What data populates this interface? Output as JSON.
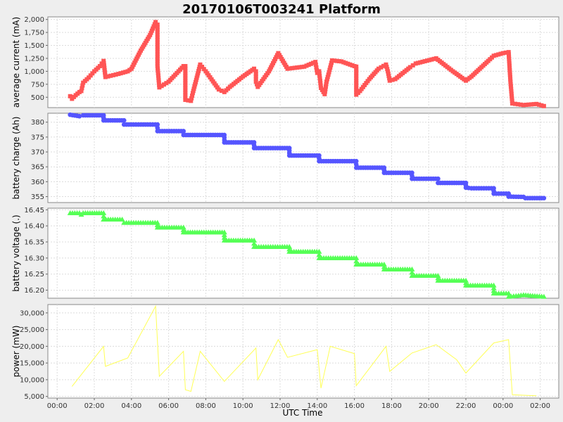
{
  "chart_data": {
    "title": "20170106T003241 Platform",
    "xlabel": "UTC Time",
    "x_ticks": [
      "00:00",
      "02:00",
      "04:00",
      "06:00",
      "08:00",
      "10:00",
      "12:00",
      "14:00",
      "16:00",
      "18:00",
      "20:00",
      "22:00",
      "00:00",
      "02:00"
    ],
    "x_tick_hours": [
      0,
      2,
      4,
      6,
      8,
      10,
      12,
      14,
      16,
      18,
      20,
      22,
      24,
      26
    ],
    "xlim": [
      -0.5,
      27.0
    ],
    "panels": [
      {
        "type": "line",
        "ylabel": "average current (mA)",
        "ylim": [
          300,
          2050
        ],
        "y_ticks": [
          500,
          750,
          1000,
          1250,
          1500,
          1750,
          2000
        ],
        "y_tick_labels": [
          "500",
          "750",
          "1,000",
          "1,250",
          "1,500",
          "1,750",
          "2,000"
        ],
        "color": "#ff5555",
        "marker": "square",
        "points": [
          [
            0.7,
            520
          ],
          [
            0.8,
            470
          ],
          [
            1.0,
            540
          ],
          [
            1.2,
            600
          ],
          [
            1.3,
            620
          ],
          [
            1.4,
            780
          ],
          [
            1.7,
            880
          ],
          [
            2.0,
            1000
          ],
          [
            2.3,
            1100
          ],
          [
            2.5,
            1200
          ],
          [
            2.6,
            890
          ],
          [
            3.3,
            950
          ],
          [
            3.8,
            1000
          ],
          [
            4.0,
            1050
          ],
          [
            4.5,
            1400
          ],
          [
            5.0,
            1700
          ],
          [
            5.3,
            1950
          ],
          [
            5.4,
            1900
          ],
          [
            5.4,
            1560
          ],
          [
            5.4,
            1100
          ],
          [
            5.5,
            690
          ],
          [
            6.0,
            800
          ],
          [
            6.8,
            1100
          ],
          [
            6.9,
            1100
          ],
          [
            6.9,
            450
          ],
          [
            7.2,
            430
          ],
          [
            7.3,
            580
          ],
          [
            7.7,
            1130
          ],
          [
            8.0,
            1000
          ],
          [
            8.7,
            650
          ],
          [
            9.0,
            600
          ],
          [
            9.3,
            700
          ],
          [
            10.0,
            900
          ],
          [
            10.6,
            1050
          ],
          [
            10.7,
            1000
          ],
          [
            10.7,
            800
          ],
          [
            10.8,
            700
          ],
          [
            11.4,
            1000
          ],
          [
            11.9,
            1350
          ],
          [
            12.4,
            1050
          ],
          [
            13.3,
            1090
          ],
          [
            13.9,
            1180
          ],
          [
            14.0,
            970
          ],
          [
            14.1,
            1000
          ],
          [
            14.2,
            680
          ],
          [
            14.4,
            560
          ],
          [
            14.5,
            800
          ],
          [
            14.8,
            1210
          ],
          [
            15.3,
            1190
          ],
          [
            16.0,
            1100
          ],
          [
            16.1,
            1090
          ],
          [
            16.1,
            550
          ],
          [
            16.3,
            620
          ],
          [
            16.8,
            850
          ],
          [
            17.3,
            1050
          ],
          [
            17.7,
            1130
          ],
          [
            17.8,
            1000
          ],
          [
            17.9,
            820
          ],
          [
            18.2,
            850
          ],
          [
            19.0,
            1080
          ],
          [
            19.3,
            1150
          ],
          [
            20.4,
            1250
          ],
          [
            21.3,
            1000
          ],
          [
            21.5,
            950
          ],
          [
            22.0,
            820
          ],
          [
            22.3,
            900
          ],
          [
            23.2,
            1200
          ],
          [
            23.5,
            1300
          ],
          [
            24.0,
            1350
          ],
          [
            24.3,
            1370
          ],
          [
            24.4,
            800
          ],
          [
            24.5,
            380
          ],
          [
            25.1,
            350
          ],
          [
            25.8,
            370
          ],
          [
            26.2,
            330
          ]
        ]
      },
      {
        "type": "line",
        "ylabel": "battery charge (Ah)",
        "ylim": [
          353,
          383
        ],
        "y_ticks": [
          355,
          360,
          365,
          370,
          375,
          380
        ],
        "y_tick_labels": [
          "355",
          "360",
          "365",
          "370",
          "375",
          "380"
        ],
        "color": "#5555ff",
        "marker": "circle",
        "points": [
          [
            0.7,
            382.5
          ],
          [
            1.2,
            382.0
          ],
          [
            1.4,
            382.3
          ],
          [
            2.5,
            382.3
          ],
          [
            2.5,
            380.6
          ],
          [
            3.6,
            380.6
          ],
          [
            3.6,
            379.2
          ],
          [
            5.4,
            379.2
          ],
          [
            5.4,
            377.0
          ],
          [
            6.8,
            377.0
          ],
          [
            6.8,
            375.7
          ],
          [
            9.0,
            375.7
          ],
          [
            9.0,
            373.2
          ],
          [
            10.6,
            373.2
          ],
          [
            10.6,
            371.3
          ],
          [
            12.5,
            371.3
          ],
          [
            12.5,
            368.8
          ],
          [
            14.1,
            368.8
          ],
          [
            14.1,
            366.9
          ],
          [
            16.1,
            366.9
          ],
          [
            16.1,
            364.7
          ],
          [
            17.6,
            364.7
          ],
          [
            17.6,
            363.0
          ],
          [
            19.1,
            363.0
          ],
          [
            19.1,
            361.0
          ],
          [
            20.5,
            361.0
          ],
          [
            20.5,
            359.6
          ],
          [
            22.0,
            359.6
          ],
          [
            22.0,
            358.0
          ],
          [
            22.3,
            357.8
          ],
          [
            23.5,
            357.8
          ],
          [
            23.5,
            356.0
          ],
          [
            24.3,
            356.0
          ],
          [
            24.3,
            355.0
          ],
          [
            25.1,
            354.9
          ],
          [
            25.2,
            354.5
          ],
          [
            26.2,
            354.5
          ]
        ]
      },
      {
        "type": "line",
        "ylabel": "battery voltage (.)",
        "ylim": [
          16.175,
          16.455
        ],
        "y_ticks": [
          16.2,
          16.25,
          16.3,
          16.35,
          16.4,
          16.45
        ],
        "y_tick_labels": [
          "16.20",
          "16.25",
          "16.30",
          "16.35",
          "16.40",
          "16.45"
        ],
        "color": "#55ff55",
        "marker": "triangle",
        "points": [
          [
            0.7,
            16.44
          ],
          [
            1.2,
            16.44
          ],
          [
            1.3,
            16.435
          ],
          [
            1.4,
            16.44
          ],
          [
            2.5,
            16.44
          ],
          [
            2.5,
            16.42
          ],
          [
            3.5,
            16.42
          ],
          [
            3.6,
            16.41
          ],
          [
            5.4,
            16.41
          ],
          [
            5.4,
            16.395
          ],
          [
            6.8,
            16.395
          ],
          [
            6.8,
            16.38
          ],
          [
            9.0,
            16.38
          ],
          [
            9.0,
            16.355
          ],
          [
            10.6,
            16.355
          ],
          [
            10.6,
            16.335
          ],
          [
            12.5,
            16.335
          ],
          [
            12.5,
            16.32
          ],
          [
            14.1,
            16.32
          ],
          [
            14.1,
            16.3
          ],
          [
            16.1,
            16.3
          ],
          [
            16.1,
            16.28
          ],
          [
            17.6,
            16.28
          ],
          [
            17.6,
            16.265
          ],
          [
            19.1,
            16.265
          ],
          [
            19.1,
            16.245
          ],
          [
            20.5,
            16.245
          ],
          [
            20.5,
            16.23
          ],
          [
            22.0,
            16.23
          ],
          [
            22.0,
            16.215
          ],
          [
            23.5,
            16.215
          ],
          [
            23.5,
            16.19
          ],
          [
            24.3,
            16.19
          ],
          [
            24.3,
            16.18
          ],
          [
            25.1,
            16.185
          ],
          [
            26.2,
            16.18
          ]
        ]
      },
      {
        "type": "line",
        "ylabel": "power (mW)",
        "ylim": [
          4500,
          32500
        ],
        "y_ticks": [
          5000,
          10000,
          15000,
          20000,
          25000,
          30000
        ],
        "y_tick_labels": [
          "5,000",
          "10,000",
          "15,000",
          "20,000",
          "25,000",
          "30,000"
        ],
        "color": "#ffff55",
        "marker": "none",
        "points": [
          [
            0.8,
            8000
          ],
          [
            2.5,
            20000
          ],
          [
            2.6,
            14000
          ],
          [
            3.8,
            16500
          ],
          [
            5.3,
            32000
          ],
          [
            5.5,
            11000
          ],
          [
            6.8,
            18500
          ],
          [
            6.9,
            7000
          ],
          [
            7.2,
            6500
          ],
          [
            7.7,
            18500
          ],
          [
            9.0,
            9500
          ],
          [
            10.7,
            19500
          ],
          [
            10.8,
            10000
          ],
          [
            11.9,
            22000
          ],
          [
            12.4,
            16700
          ],
          [
            14.0,
            19000
          ],
          [
            14.2,
            7500
          ],
          [
            14.7,
            20000
          ],
          [
            16.0,
            17800
          ],
          [
            16.1,
            8200
          ],
          [
            17.3,
            17000
          ],
          [
            17.7,
            20000
          ],
          [
            17.9,
            12500
          ],
          [
            19.1,
            18000
          ],
          [
            20.4,
            20500
          ],
          [
            21.5,
            16000
          ],
          [
            22.0,
            12000
          ],
          [
            23.5,
            21000
          ],
          [
            24.3,
            22000
          ],
          [
            24.5,
            5500
          ],
          [
            25.8,
            5200
          ]
        ]
      }
    ]
  }
}
